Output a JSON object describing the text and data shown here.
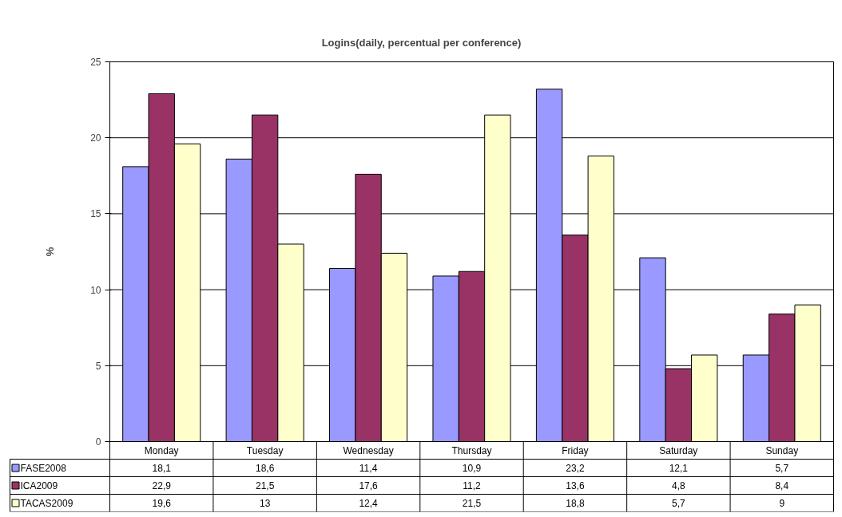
{
  "chart_data": {
    "type": "bar",
    "title": "Logins(daily, percentual per conference)",
    "ylabel": "%",
    "categories": [
      "Monday",
      "Tuesday",
      "Wednesday",
      "Thursday",
      "Friday",
      "Saturday",
      "Sunday"
    ],
    "series": [
      {
        "name": "FASE2008",
        "color": "#9999ff",
        "values": [
          18.1,
          18.6,
          11.4,
          10.9,
          23.2,
          12.1,
          5.7
        ],
        "value_labels": [
          "18,1",
          "18,6",
          "11,4",
          "10,9",
          "23,2",
          "12,1",
          "5,7"
        ]
      },
      {
        "name": "ICA2009",
        "color": "#993366",
        "values": [
          22.9,
          21.5,
          17.6,
          11.2,
          13.6,
          4.8,
          8.4
        ],
        "value_labels": [
          "22,9",
          "21,5",
          "17,6",
          "11,2",
          "13,6",
          "4,8",
          "8,4"
        ]
      },
      {
        "name": "TACAS2009",
        "color": "#ffffcc",
        "values": [
          19.6,
          13,
          12.4,
          21.5,
          18.8,
          5.7,
          9
        ],
        "value_labels": [
          "19,6",
          "13",
          "12,4",
          "21,5",
          "18,8",
          "5,7",
          "9"
        ]
      }
    ],
    "ylim": [
      0,
      25
    ],
    "yticks": [
      0,
      5,
      10,
      15,
      20,
      25
    ],
    "grid": "y",
    "legend": "bottom left"
  }
}
